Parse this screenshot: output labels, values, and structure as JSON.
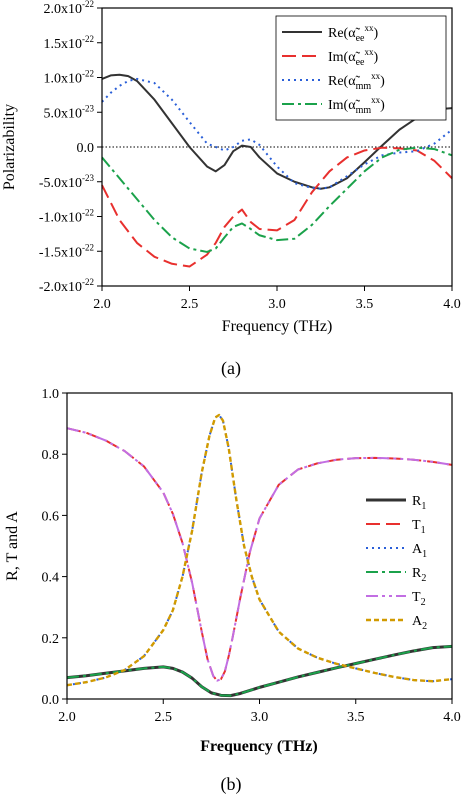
{
  "chart_data": [
    {
      "type": "line",
      "panel_label": "(a)",
      "xlabel": "Frequency (THz)",
      "ylabel": "Polarizability",
      "xlim": [
        2.0,
        4.0
      ],
      "ylim": [
        -2e-22,
        2e-22
      ],
      "x_ticks": [
        2.0,
        2.5,
        3.0,
        3.5,
        4.0
      ],
      "x_tick_labels": [
        "2.0",
        "2.5",
        "3.0",
        "3.5",
        "4.0"
      ],
      "y_ticks": [
        2e-22,
        1.5e-22,
        1e-22,
        5e-23,
        0,
        -5e-23,
        -1e-22,
        -1.5e-22,
        -2e-22
      ],
      "y_tick_labels": [
        {
          "mantissa": "2.0x10",
          "exp": "-22"
        },
        {
          "mantissa": "1.5x10",
          "exp": "-22"
        },
        {
          "mantissa": "1.0x10",
          "exp": "-22"
        },
        {
          "mantissa": "5.0x10",
          "exp": "-23"
        },
        {
          "mantissa": "0.0",
          "exp": ""
        },
        {
          "mantissa": "-5.0x10",
          "exp": "-23"
        },
        {
          "mantissa": "-1.0x10",
          "exp": "-22"
        },
        {
          "mantissa": "-1.5x10",
          "exp": "-22"
        },
        {
          "mantissa": "-2.0x10",
          "exp": "-22"
        }
      ],
      "zero_line": true,
      "legend_position": "top-right",
      "series": [
        {
          "name": {
            "part": "Re",
            "symbol": "α̃",
            "sub": "ee",
            "sup": "xx"
          },
          "color": "#333333",
          "dash": "solid",
          "x": [
            2.0,
            2.05,
            2.1,
            2.15,
            2.2,
            2.3,
            2.4,
            2.5,
            2.6,
            2.65,
            2.7,
            2.75,
            2.8,
            2.85,
            2.9,
            3.0,
            3.1,
            3.2,
            3.25,
            3.3,
            3.4,
            3.5,
            3.6,
            3.7,
            3.8,
            3.9,
            4.0
          ],
          "y": [
            9.8e-23,
            1.03e-22,
            1.04e-22,
            1.02e-22,
            9.5e-23,
            6.8e-23,
            3.4e-23,
            0,
            -2.8e-23,
            -3.5e-23,
            -2.6e-23,
            -6e-24,
            2e-24,
            0,
            -1.5e-23,
            -3.8e-23,
            -5e-23,
            -5.8e-23,
            -6e-23,
            -5.8e-23,
            -4.5e-23,
            -2.2e-23,
            2e-24,
            2.5e-23,
            4.2e-23,
            5.4e-23,
            5.6e-23
          ]
        },
        {
          "name": {
            "part": "Im",
            "symbol": "α̃",
            "sub": "ee",
            "sup": "xx"
          },
          "color": "#e8302e",
          "dash": "14,6",
          "x": [
            2.0,
            2.1,
            2.2,
            2.3,
            2.4,
            2.5,
            2.6,
            2.65,
            2.7,
            2.75,
            2.8,
            2.85,
            2.9,
            3.0,
            3.1,
            3.2,
            3.3,
            3.4,
            3.5,
            3.6,
            3.7,
            3.8,
            3.9,
            4.0
          ],
          "y": [
            -5.5e-23,
            -1.05e-22,
            -1.38e-22,
            -1.58e-22,
            -1.68e-22,
            -1.72e-22,
            -1.55e-22,
            -1.38e-22,
            -1.15e-22,
            -1e-22,
            -9e-23,
            -1.08e-22,
            -1.18e-22,
            -1.2e-22,
            -1.05e-22,
            -6.5e-23,
            -3.5e-23,
            -1.5e-23,
            -5e-24,
            -1e-24,
            -2e-24,
            -5e-24,
            -2e-23,
            -4.5e-23
          ]
        },
        {
          "name": {
            "part": "Re",
            "symbol": "α̃",
            "sub": "mm",
            "sup": "xx"
          },
          "color": "#2a5fd8",
          "dash": "2,4",
          "x": [
            2.0,
            2.05,
            2.1,
            2.15,
            2.2,
            2.3,
            2.4,
            2.5,
            2.6,
            2.7,
            2.75,
            2.8,
            2.85,
            2.9,
            3.0,
            3.1,
            3.2,
            3.25,
            3.3,
            3.4,
            3.5,
            3.6,
            3.7,
            3.8,
            3.9,
            4.0
          ],
          "y": [
            6.5e-23,
            7.8e-23,
            8.8e-23,
            9.5e-23,
            9.8e-23,
            9.2e-23,
            6.8e-23,
            3.6e-23,
            5e-24,
            -5e-24,
            0,
            9e-24,
            1.1e-23,
            3e-24,
            -2.8e-23,
            -5.2e-23,
            -5.9e-23,
            -6e-23,
            -5.8e-23,
            -4.2e-23,
            -2.5e-23,
            -1.2e-23,
            -8e-24,
            -6e-24,
            5e-24,
            2.5e-23
          ]
        },
        {
          "name": {
            "part": "Im",
            "symbol": "α̃",
            "sub": "mm",
            "sup": "xx"
          },
          "color": "#1ba24b",
          "dash": "12,4,3,4",
          "x": [
            2.0,
            2.1,
            2.2,
            2.3,
            2.4,
            2.5,
            2.6,
            2.65,
            2.7,
            2.75,
            2.8,
            2.85,
            2.9,
            3.0,
            3.1,
            3.2,
            3.3,
            3.4,
            3.5,
            3.6,
            3.7,
            3.8,
            3.9,
            4.0
          ],
          "y": [
            -1.5e-23,
            -4.5e-23,
            -7.5e-23,
            -1.05e-22,
            -1.3e-22,
            -1.46e-22,
            -1.51e-22,
            -1.46e-22,
            -1.3e-22,
            -1.15e-22,
            -1.1e-22,
            -1.18e-22,
            -1.27e-22,
            -1.34e-22,
            -1.32e-22,
            -1.12e-22,
            -8.5e-23,
            -6e-23,
            -3.5e-23,
            -1.5e-23,
            -4e-24,
            -1e-24,
            -3e-24,
            -1.2e-23
          ]
        }
      ]
    },
    {
      "type": "line",
      "panel_label": "(b)",
      "xlabel": "Frequency (THz)",
      "ylabel": "R, T and A",
      "xlim": [
        2.0,
        4.0
      ],
      "ylim": [
        0.0,
        1.0
      ],
      "x_ticks": [
        2.0,
        2.5,
        3.0,
        3.5,
        4.0
      ],
      "x_tick_labels": [
        "2.0",
        "2.5",
        "3.0",
        "3.5",
        "4.0"
      ],
      "y_ticks": [
        0.0,
        0.2,
        0.4,
        0.6,
        0.8,
        1.0
      ],
      "y_tick_labels": [
        "0.0",
        "0.2",
        "0.4",
        "0.6",
        "0.8",
        "1.0"
      ],
      "legend_position": "right",
      "series": [
        {
          "name": {
            "part": "R",
            "sub": "1"
          },
          "color": "#333333",
          "dash": "solid",
          "width": 3,
          "x": [
            2.0,
            2.1,
            2.2,
            2.3,
            2.4,
            2.5,
            2.55,
            2.6,
            2.65,
            2.7,
            2.75,
            2.8,
            2.85,
            2.9,
            3.0,
            3.1,
            3.2,
            3.3,
            3.4,
            3.5,
            3.6,
            3.7,
            3.8,
            3.9,
            4.0
          ],
          "y": [
            0.07,
            0.076,
            0.084,
            0.092,
            0.1,
            0.105,
            0.1,
            0.088,
            0.068,
            0.04,
            0.02,
            0.012,
            0.011,
            0.018,
            0.038,
            0.055,
            0.072,
            0.087,
            0.102,
            0.116,
            0.13,
            0.144,
            0.157,
            0.168,
            0.172
          ]
        },
        {
          "name": {
            "part": "T",
            "sub": "1"
          },
          "color": "#e8302e",
          "dash": "14,6",
          "width": 2,
          "x": [
            2.0,
            2.1,
            2.2,
            2.3,
            2.4,
            2.5,
            2.55,
            2.6,
            2.65,
            2.7,
            2.73,
            2.76,
            2.78,
            2.8,
            2.82,
            2.84,
            2.86,
            2.9,
            2.95,
            3.0,
            3.1,
            3.2,
            3.3,
            3.4,
            3.5,
            3.6,
            3.7,
            3.8,
            3.9,
            4.0
          ],
          "y": [
            0.885,
            0.87,
            0.845,
            0.81,
            0.76,
            0.675,
            0.605,
            0.51,
            0.38,
            0.22,
            0.13,
            0.075,
            0.06,
            0.065,
            0.09,
            0.14,
            0.2,
            0.33,
            0.48,
            0.59,
            0.7,
            0.75,
            0.77,
            0.782,
            0.787,
            0.788,
            0.786,
            0.782,
            0.775,
            0.765
          ]
        },
        {
          "name": {
            "part": "A",
            "sub": "1"
          },
          "color": "#2a5fd8",
          "dash": "2,4",
          "width": 2,
          "x": [
            2.0,
            2.1,
            2.2,
            2.3,
            2.4,
            2.5,
            2.55,
            2.6,
            2.65,
            2.7,
            2.74,
            2.77,
            2.79,
            2.81,
            2.84,
            2.88,
            2.92,
            2.96,
            3.0,
            3.1,
            3.2,
            3.3,
            3.4,
            3.5,
            3.6,
            3.7,
            3.8,
            3.9,
            4.0
          ],
          "y": [
            0.045,
            0.055,
            0.07,
            0.095,
            0.14,
            0.225,
            0.29,
            0.4,
            0.55,
            0.74,
            0.86,
            0.92,
            0.928,
            0.91,
            0.82,
            0.65,
            0.5,
            0.4,
            0.325,
            0.22,
            0.165,
            0.135,
            0.115,
            0.1,
            0.085,
            0.072,
            0.062,
            0.058,
            0.065
          ]
        },
        {
          "name": {
            "part": "R",
            "sub": "2"
          },
          "color": "#1ba24b",
          "dash": "12,4,3,4",
          "width": 2,
          "x": [
            2.0,
            2.1,
            2.2,
            2.3,
            2.4,
            2.5,
            2.55,
            2.6,
            2.65,
            2.7,
            2.75,
            2.8,
            2.85,
            2.9,
            3.0,
            3.1,
            3.2,
            3.3,
            3.4,
            3.5,
            3.6,
            3.7,
            3.8,
            3.9,
            4.0
          ],
          "y": [
            0.07,
            0.076,
            0.084,
            0.092,
            0.1,
            0.105,
            0.1,
            0.088,
            0.068,
            0.04,
            0.02,
            0.012,
            0.011,
            0.018,
            0.038,
            0.055,
            0.072,
            0.087,
            0.102,
            0.116,
            0.13,
            0.144,
            0.157,
            0.168,
            0.172
          ]
        },
        {
          "name": {
            "part": "T",
            "sub": "2"
          },
          "color": "#c26ee3",
          "dash": "12,4,3,4,3,4",
          "width": 2,
          "x": [
            2.0,
            2.1,
            2.2,
            2.3,
            2.4,
            2.5,
            2.55,
            2.6,
            2.65,
            2.7,
            2.73,
            2.76,
            2.78,
            2.8,
            2.82,
            2.84,
            2.86,
            2.9,
            2.95,
            3.0,
            3.1,
            3.2,
            3.3,
            3.4,
            3.5,
            3.6,
            3.7,
            3.8,
            3.9,
            4.0
          ],
          "y": [
            0.885,
            0.87,
            0.845,
            0.81,
            0.76,
            0.675,
            0.605,
            0.51,
            0.38,
            0.22,
            0.13,
            0.075,
            0.06,
            0.065,
            0.09,
            0.14,
            0.2,
            0.33,
            0.48,
            0.59,
            0.7,
            0.75,
            0.77,
            0.782,
            0.787,
            0.788,
            0.786,
            0.782,
            0.775,
            0.765
          ]
        },
        {
          "name": {
            "part": "A",
            "sub": "2"
          },
          "color": "#d19a00",
          "dash": "5,3",
          "width": 2.4,
          "x": [
            2.0,
            2.1,
            2.2,
            2.3,
            2.4,
            2.5,
            2.55,
            2.6,
            2.65,
            2.7,
            2.74,
            2.77,
            2.79,
            2.81,
            2.84,
            2.88,
            2.92,
            2.96,
            3.0,
            3.1,
            3.2,
            3.3,
            3.4,
            3.5,
            3.6,
            3.7,
            3.8,
            3.9,
            4.0
          ],
          "y": [
            0.045,
            0.055,
            0.07,
            0.095,
            0.14,
            0.225,
            0.29,
            0.4,
            0.55,
            0.74,
            0.86,
            0.92,
            0.928,
            0.91,
            0.82,
            0.65,
            0.5,
            0.4,
            0.325,
            0.22,
            0.165,
            0.135,
            0.115,
            0.1,
            0.085,
            0.072,
            0.062,
            0.058,
            0.065
          ]
        }
      ]
    }
  ]
}
